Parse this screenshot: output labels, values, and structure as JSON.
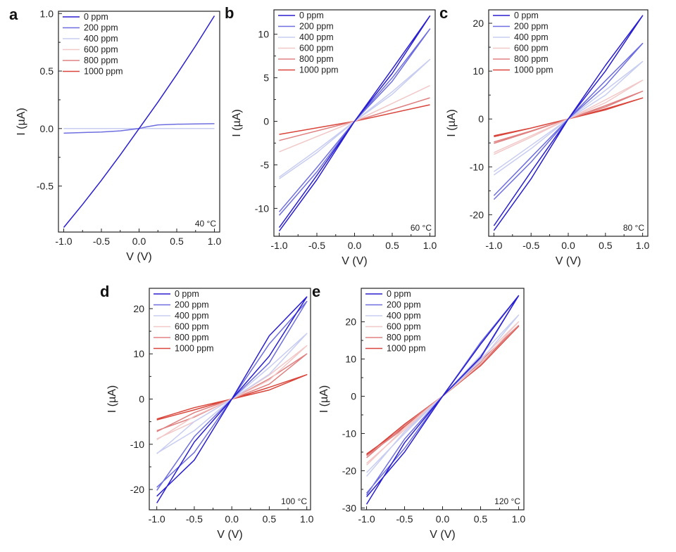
{
  "legend_labels": [
    "0 ppm",
    "200 ppm",
    "400 ppm",
    "600 ppm",
    "800 ppm",
    "1000 ppm"
  ],
  "series_colors": [
    "#2a1fd0",
    "#6e6ee0",
    "#c8cdf2",
    "#f2c8c8",
    "#e08080",
    "#d9453a"
  ],
  "chart_data": [
    {
      "type": "line",
      "panel": "a",
      "temperature": "40 °C",
      "xlabel": "V (V)",
      "ylabel": "I (µA)",
      "xlim": [
        -1.07,
        1.07
      ],
      "ylim": [
        -0.9,
        1.02
      ],
      "xticks": [
        -1.0,
        -0.5,
        0.0,
        0.5,
        1.0
      ],
      "xtick_labels": [
        "-1.0",
        "-0.5",
        "0.0",
        "0.5",
        "1.0"
      ],
      "yticks": [
        -0.5,
        0.0,
        0.5,
        1.0
      ],
      "ytick_labels": [
        "-0.5",
        "0.0",
        "0.5",
        "1.0"
      ],
      "series": [
        {
          "name": "0 ppm",
          "x": [
            -1.0,
            -0.75,
            -0.5,
            -0.25,
            0.0,
            0.25,
            0.5,
            0.75,
            1.0
          ],
          "y": [
            -0.86,
            -0.66,
            -0.45,
            -0.23,
            0.0,
            0.23,
            0.47,
            0.72,
            0.98
          ]
        },
        {
          "name": "200 ppm",
          "x": [
            -1.0,
            -0.75,
            -0.5,
            -0.25,
            -0.1,
            0.0,
            0.1,
            0.25,
            0.5,
            0.75,
            1.0
          ],
          "y": [
            -0.04,
            -0.035,
            -0.03,
            -0.02,
            -0.008,
            0.0,
            0.015,
            0.032,
            0.038,
            0.04,
            0.042
          ]
        },
        {
          "name": "400 ppm",
          "x": [
            -1.0,
            1.0
          ],
          "y": [
            0.0,
            0.0
          ]
        },
        {
          "name": "600 ppm",
          "x": [
            -1.0,
            1.0
          ],
          "y": [
            0.0,
            0.0
          ]
        },
        {
          "name": "800 ppm",
          "x": [
            -1.0,
            1.0
          ],
          "y": [
            0.0,
            0.0
          ]
        },
        {
          "name": "1000 ppm",
          "x": [
            -1.0,
            1.0
          ],
          "y": [
            0.0,
            0.0
          ]
        }
      ]
    },
    {
      "type": "line",
      "panel": "b",
      "temperature": "60 °C",
      "xlabel": "V (V)",
      "ylabel": "I (µA)",
      "xlim": [
        -1.07,
        1.07
      ],
      "ylim": [
        -13.2,
        12.8
      ],
      "xticks": [
        -1.0,
        -0.5,
        0.0,
        0.5,
        1.0
      ],
      "xtick_labels": [
        "-1.0",
        "-0.5",
        "0.0",
        "0.5",
        "1.0"
      ],
      "yticks": [
        -10,
        -5,
        0,
        5,
        10
      ],
      "ytick_labels": [
        "-10",
        "-5",
        "0",
        "5",
        "10"
      ],
      "series": [
        {
          "name": "0 ppm",
          "x": [
            -1.0,
            -0.5,
            0.0,
            0.5,
            1.0,
            0.5,
            0.0,
            -0.5,
            -1.0
          ],
          "y": [
            -12.6,
            -6.7,
            0.0,
            5.5,
            12.1,
            6.0,
            0.0,
            -6.2,
            -12.2
          ]
        },
        {
          "name": "200 ppm",
          "x": [
            -1.0,
            -0.5,
            0.0,
            0.5,
            1.0,
            0.5,
            0.0,
            -0.5,
            -1.0
          ],
          "y": [
            -10.8,
            -5.8,
            0.0,
            4.6,
            10.6,
            5.0,
            0.0,
            -5.3,
            -10.4
          ]
        },
        {
          "name": "400 ppm",
          "x": [
            -1.0,
            -0.5,
            0.0,
            0.5,
            1.0,
            0.5,
            0.0,
            -0.5,
            -1.0
          ],
          "y": [
            -6.6,
            -3.6,
            0.0,
            3.1,
            7.1,
            3.4,
            0.0,
            -3.3,
            -6.4
          ]
        },
        {
          "name": "600 ppm",
          "x": [
            -1.0,
            0.0,
            1.0
          ],
          "y": [
            -3.5,
            0.0,
            4.1
          ]
        },
        {
          "name": "800 ppm",
          "x": [
            -1.0,
            0.0,
            1.0
          ],
          "y": [
            -2.2,
            0.0,
            2.7
          ]
        },
        {
          "name": "1000 ppm",
          "x": [
            -1.0,
            0.0,
            1.0
          ],
          "y": [
            -1.5,
            0.0,
            1.9
          ]
        }
      ]
    },
    {
      "type": "line",
      "panel": "c",
      "temperature": "80 °C",
      "xlabel": "V (V)",
      "ylabel": "I (µA)",
      "xlim": [
        -1.07,
        1.07
      ],
      "ylim": [
        -24.5,
        22.8
      ],
      "xticks": [
        -1.0,
        -0.5,
        0.0,
        0.5,
        1.0
      ],
      "xtick_labels": [
        "-1.0",
        "-0.5",
        "0.0",
        "0.5",
        "1.0"
      ],
      "yticks": [
        -20,
        -10,
        0,
        10,
        20
      ],
      "ytick_labels": [
        "-20",
        "-10",
        "0",
        "10",
        "20"
      ],
      "series": [
        {
          "name": "0 ppm",
          "x": [
            -1.0,
            -0.5,
            0.0,
            0.5,
            1.0,
            0.5,
            0.0,
            -0.5,
            -1.0
          ],
          "y": [
            -23.3,
            -12.5,
            0.0,
            10.0,
            21.6,
            11.2,
            0.0,
            -11.0,
            -22.3
          ]
        },
        {
          "name": "200 ppm",
          "x": [
            -1.0,
            -0.5,
            0.0,
            0.5,
            1.0,
            0.5,
            0.0,
            -0.5,
            -1.0
          ],
          "y": [
            -16.8,
            -9.0,
            0.0,
            7.0,
            15.8,
            8.0,
            0.0,
            -8.0,
            -16.0
          ]
        },
        {
          "name": "400 ppm",
          "x": [
            -1.0,
            -0.5,
            0.0,
            0.5,
            1.0,
            0.5,
            0.0,
            -0.5,
            -1.0
          ],
          "y": [
            -11.7,
            -6.2,
            0.0,
            5.0,
            12.0,
            6.0,
            0.0,
            -5.5,
            -11.0
          ]
        },
        {
          "name": "600 ppm",
          "x": [
            -1.0,
            -0.5,
            0.0,
            0.5,
            1.0,
            0.5,
            0.0,
            -0.5,
            -1.0
          ],
          "y": [
            -7.4,
            -3.8,
            0.0,
            3.4,
            8.1,
            4.0,
            0.0,
            -3.5,
            -7.0
          ]
        },
        {
          "name": "800 ppm",
          "x": [
            -1.0,
            -0.5,
            0.0,
            0.5,
            1.0,
            0.5,
            0.0,
            -0.5,
            -1.0
          ],
          "y": [
            -5.1,
            -2.6,
            0.0,
            2.5,
            5.8,
            2.8,
            0.0,
            -2.5,
            -4.8
          ]
        },
        {
          "name": "1000 ppm",
          "x": [
            -1.0,
            -0.5,
            0.0,
            0.5,
            1.0,
            0.5,
            0.0,
            -0.5,
            -1.0
          ],
          "y": [
            -3.7,
            -1.9,
            0.0,
            1.9,
            4.4,
            2.1,
            0.0,
            -1.9,
            -3.5
          ]
        }
      ]
    },
    {
      "type": "line",
      "panel": "d",
      "temperature": "100 °C",
      "xlabel": "V (V)",
      "ylabel": "I (µA)",
      "xlim": [
        -1.1,
        1.05
      ],
      "ylim": [
        -24.5,
        24.5
      ],
      "xticks": [
        -1.0,
        -0.5,
        0.0,
        0.5,
        1.0
      ],
      "xtick_labels": [
        "-1.0",
        "-0.5",
        "0.0",
        "0.5",
        "1.0"
      ],
      "yticks": [
        -20,
        -10,
        0,
        10,
        20
      ],
      "ytick_labels": [
        "-20",
        "-10",
        "0",
        "10",
        "20"
      ],
      "series": [
        {
          "name": "0 ppm",
          "x": [
            -1.0,
            -0.5,
            0.0,
            0.5,
            1.0,
            0.5,
            0.0,
            -0.5,
            -1.0
          ],
          "y": [
            -23.0,
            -9.5,
            0.0,
            14.0,
            22.6,
            9.5,
            0.0,
            -13.5,
            -21.5
          ]
        },
        {
          "name": "200 ppm",
          "x": [
            -1.0,
            -0.5,
            0.0,
            0.5,
            1.0,
            0.5,
            0.0,
            -0.5,
            -1.0
          ],
          "y": [
            -20.2,
            -8.3,
            0.0,
            12.2,
            21.6,
            8.0,
            0.0,
            -11.8,
            -19.5
          ]
        },
        {
          "name": "400 ppm",
          "x": [
            -1.0,
            -0.5,
            0.0,
            0.5,
            1.0,
            0.5,
            0.0,
            -0.5,
            -1.0
          ],
          "y": [
            -12.1,
            -5.0,
            0.0,
            7.0,
            14.5,
            5.5,
            0.0,
            -7.0,
            -12.0
          ]
        },
        {
          "name": "600 ppm",
          "x": [
            -1.0,
            -0.5,
            0.0,
            0.5,
            1.0,
            0.5,
            0.0,
            -0.5,
            -1.0
          ],
          "y": [
            -9.0,
            -3.8,
            0.0,
            5.3,
            11.8,
            4.2,
            0.0,
            -5.0,
            -8.8
          ]
        },
        {
          "name": "800 ppm",
          "x": [
            -1.0,
            -0.5,
            0.0,
            0.5,
            1.0,
            0.5,
            0.0,
            -0.5,
            -1.0
          ],
          "y": [
            -7.2,
            -3.0,
            0.0,
            4.5,
            10.0,
            3.3,
            0.0,
            -4.0,
            -7.0
          ]
        },
        {
          "name": "1000 ppm",
          "x": [
            -1.0,
            -0.5,
            0.0,
            0.5,
            1.0,
            0.5,
            0.0,
            -0.5,
            -1.0
          ],
          "y": [
            -4.4,
            -1.9,
            0.0,
            2.6,
            5.4,
            2.0,
            0.0,
            -2.4,
            -4.6
          ]
        }
      ]
    },
    {
      "type": "line",
      "panel": "e",
      "temperature": "120 °C",
      "xlabel": "V (V)",
      "ylabel": "I (µA)",
      "xlim": [
        -1.07,
        1.07
      ],
      "ylim": [
        -30.5,
        29.0
      ],
      "xticks": [
        -1.0,
        -0.5,
        0.0,
        0.5,
        1.0
      ],
      "xtick_labels": [
        "-1.0",
        "-0.5",
        "0.0",
        "0.5",
        "1.0"
      ],
      "yticks": [
        -30,
        -20,
        -10,
        0,
        10,
        20
      ],
      "ytick_labels": [
        "-30",
        "-20",
        "-10",
        "0",
        "10",
        "20"
      ],
      "series": [
        {
          "name": "0 ppm",
          "x": [
            -1.0,
            -0.5,
            0.0,
            0.5,
            1.0,
            0.5,
            0.0,
            -0.5,
            -1.0
          ],
          "y": [
            -29.0,
            -12.5,
            0.0,
            14.0,
            27.0,
            10.5,
            0.0,
            -15.0,
            -27.0
          ]
        },
        {
          "name": "200 ppm",
          "x": [
            -1.0,
            -0.5,
            0.0,
            0.5,
            1.0,
            0.5,
            0.0,
            -0.5,
            -1.0
          ],
          "y": [
            -26.5,
            -11.5,
            0.0,
            14.5,
            27.0,
            10.2,
            0.0,
            -14.0,
            -26.0
          ]
        },
        {
          "name": "400 ppm",
          "x": [
            -1.0,
            -0.5,
            0.0,
            0.5,
            1.0,
            0.5,
            0.0,
            -0.5,
            -1.0
          ],
          "y": [
            -21.5,
            -9.5,
            0.0,
            11.0,
            21.8,
            9.5,
            0.0,
            -10.0,
            -20.5
          ]
        },
        {
          "name": "600 ppm",
          "x": [
            -1.0,
            -0.5,
            0.0,
            0.5,
            1.0,
            0.5,
            0.0,
            -0.5,
            -1.0
          ],
          "y": [
            -18.5,
            -8.5,
            0.0,
            10.0,
            20.0,
            8.8,
            0.0,
            -9.0,
            -18.0
          ]
        },
        {
          "name": "800 ppm",
          "x": [
            -1.0,
            -0.5,
            0.0,
            0.5,
            1.0,
            0.5,
            0.0,
            -0.5,
            -1.0
          ],
          "y": [
            -16.5,
            -7.8,
            0.0,
            9.5,
            19.0,
            8.5,
            0.0,
            -8.5,
            -16.0
          ]
        },
        {
          "name": "1000 ppm",
          "x": [
            -1.0,
            -0.5,
            0.0,
            0.5,
            1.0,
            0.5,
            0.0,
            -0.5,
            -1.0
          ],
          "y": [
            -15.8,
            -7.5,
            0.0,
            9.0,
            18.8,
            8.2,
            0.0,
            -8.2,
            -15.5
          ]
        }
      ]
    }
  ]
}
